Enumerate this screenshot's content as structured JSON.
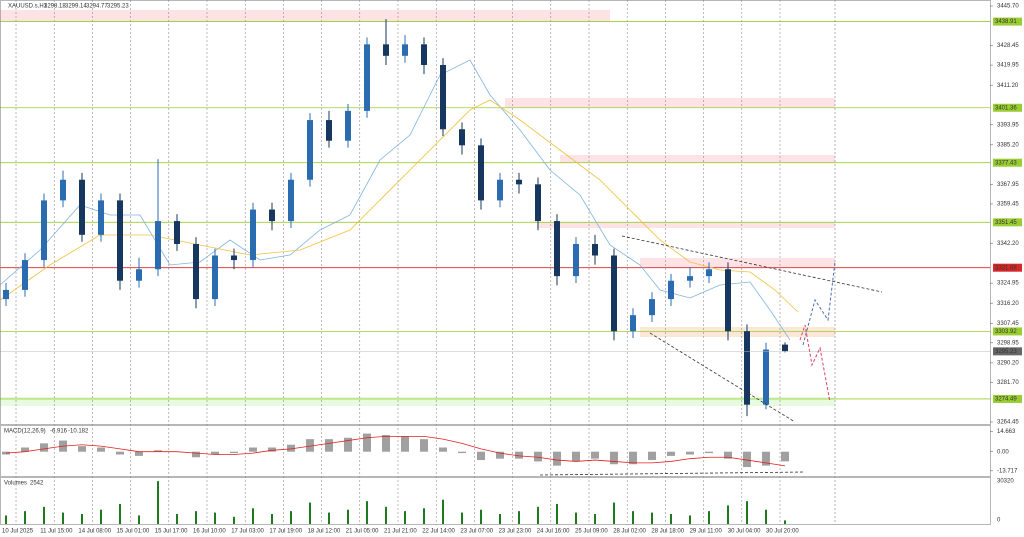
{
  "chart_data": [
    {
      "type": "candlestick",
      "title": "XAUUSD.s,H1",
      "open": [
        3318,
        3322,
        3335,
        3361,
        3370,
        3346,
        3361,
        3326,
        3331,
        3352,
        3342,
        3318,
        3337,
        3335,
        3357,
        3352,
        3370,
        3396,
        3387,
        3400,
        3429,
        3424,
        3429,
        3420,
        3392,
        3385,
        3361,
        3370,
        3368,
        3352,
        3328,
        3342,
        3337,
        3304,
        3311,
        3318,
        3326,
        3328,
        3331,
        3304,
        3272,
        3298.18
      ],
      "high": [
        3325,
        3338,
        3364,
        3374,
        3373,
        3364,
        3364,
        3336,
        3379,
        3355,
        3345,
        3340,
        3340,
        3360,
        3360,
        3373,
        3399,
        3400,
        3403,
        3432,
        3440,
        3433,
        3432,
        3423,
        3395,
        3388,
        3373,
        3373,
        3371,
        3355,
        3345,
        3346,
        3340,
        3314,
        3321,
        3329,
        3332,
        3334,
        3334,
        3307,
        3299,
        3299.14
      ],
      "low": [
        3315,
        3319,
        3332,
        3358,
        3343,
        3343,
        3322,
        3323,
        3328,
        3339,
        3314,
        3315,
        3331,
        3332,
        3348,
        3349,
        3367,
        3384,
        3384,
        3397,
        3420,
        3421,
        3416,
        3389,
        3381,
        3357,
        3358,
        3364,
        3348,
        3324,
        3325,
        3333,
        3300,
        3301,
        3308,
        3315,
        3323,
        3325,
        3300,
        3267,
        3270,
        3294.77
      ],
      "close": [
        3322,
        3335,
        3361,
        3370,
        3346,
        3361,
        3326,
        3331,
        3352,
        3342,
        3318,
        3337,
        3335,
        3357,
        3352,
        3370,
        3396,
        3387,
        3400,
        3429,
        3424,
        3429,
        3420,
        3392,
        3385,
        3361,
        3370,
        3368,
        3352,
        3328,
        3342,
        3337,
        3304,
        3311,
        3318,
        3326,
        3328,
        3331,
        3304,
        3272,
        3296,
        3295.23
      ],
      "up_color": "#2b6cb0",
      "down_color": "#17375e",
      "ylim": [
        3264.45,
        3445.7
      ],
      "yticks": [
        {
          "value": 3445.7,
          "label": "3445.70"
        },
        {
          "value": 3428.45,
          "label": "3428.45"
        },
        {
          "value": 3419.95,
          "label": "3419.95"
        },
        {
          "value": 3411.2,
          "label": "3411.20"
        },
        {
          "value": 3393.95,
          "label": "3393.95"
        },
        {
          "value": 3385.2,
          "label": "3385.20"
        },
        {
          "value": 3367.95,
          "label": "3367.95"
        },
        {
          "value": 3359.45,
          "label": "3359.45"
        },
        {
          "value": 3342.2,
          "label": "3342.20"
        },
        {
          "value": 3324.95,
          "label": "3324.95"
        },
        {
          "value": 3316.2,
          "label": "3316.20"
        },
        {
          "value": 3307.45,
          "label": "3307.45"
        },
        {
          "value": 3298.95,
          "label": "3298.95"
        },
        {
          "value": 3290.2,
          "label": "3290.20"
        },
        {
          "value": 3281.7,
          "label": "3281.70"
        },
        {
          "value": 3264.45,
          "label": "3264.45"
        }
      ],
      "levels": [
        {
          "value": 3438.91,
          "color": "#9acd32"
        },
        {
          "value": 3401.36,
          "color": "#9acd32"
        },
        {
          "value": 3377.43,
          "color": "#9acd32"
        },
        {
          "value": 3351.45,
          "color": "#9acd32"
        },
        {
          "value": 3331.68,
          "color": "#d62728"
        },
        {
          "value": 3303.92,
          "color": "#9acd32"
        },
        {
          "value": 3274.49,
          "color": "#9acd32"
        }
      ],
      "time_labels": [
        "10 Jul 2025",
        "11 Jul 15:00",
        "14 Jul 08:00",
        "15 Jul 01:00",
        "15 Jul 17:00",
        "16 Jul 10:00",
        "17 Jul 03:00",
        "17 Jul 19:00",
        "18 Jul 12:00",
        "21 Jul 05:00",
        "21 Jul 21:00",
        "22 Jul 14:00",
        "23 Jul 07:00",
        "23 Jul 23:00",
        "24 Jul 16:00",
        "25 Jul 09:00",
        "28 Jul 02:00",
        "28 Jul 18:00",
        "29 Jul 11:00",
        "30 Jul 04:00",
        "30 Jul 20:00"
      ],
      "grid": true
    },
    {
      "type": "macd",
      "title": "MACD(12,26,9)",
      "series": [
        {
          "name": "MACD",
          "color": "#a0a0a0",
          "values": [
            -2,
            3,
            6,
            8,
            4,
            3,
            -2,
            -3,
            1,
            0,
            -4,
            -2,
            -1,
            3,
            3,
            5,
            9,
            9,
            10,
            13,
            12,
            11,
            9,
            3,
            -1,
            -6,
            -5,
            -5,
            -7,
            -10,
            -7,
            -5,
            -9,
            -9,
            -6,
            -3,
            -2,
            -1,
            -5,
            -11,
            -10,
            -6.916
          ]
        },
        {
          "name": "Signal",
          "color": "#e02020",
          "values": [
            -1,
            0,
            2,
            4,
            5,
            4,
            2,
            0,
            0,
            0,
            -1,
            -2,
            -2,
            -1,
            1,
            2,
            4,
            6,
            8,
            10,
            11,
            11,
            11,
            9,
            6,
            2,
            -1,
            -3,
            -4,
            -6,
            -7,
            -6,
            -7,
            -8,
            -8,
            -7,
            -5,
            -4,
            -4,
            -6,
            -8,
            -10.182
          ]
        }
      ],
      "ylim": [
        -16,
        17
      ],
      "yticks": [
        14.663,
        {
          "value": 0,
          "label": "0.00"
        },
        -13.717
      ]
    },
    {
      "type": "volume",
      "title": "Volumes",
      "color": "#1f7a1f",
      "values": [
        6000,
        9000,
        12000,
        8000,
        7000,
        10000,
        14000,
        6000,
        30000,
        7000,
        9000,
        8000,
        5000,
        11000,
        7000,
        9000,
        15000,
        8000,
        10000,
        16000,
        12000,
        9000,
        11000,
        17000,
        8000,
        10000,
        7000,
        9000,
        12000,
        14000,
        8000,
        7000,
        15000,
        9000,
        8000,
        7000,
        6000,
        9000,
        13000,
        16000,
        10000,
        2542
      ],
      "ylim": [
        0,
        31500
      ],
      "yticks": [
        30320,
        0
      ]
    }
  ]
}
